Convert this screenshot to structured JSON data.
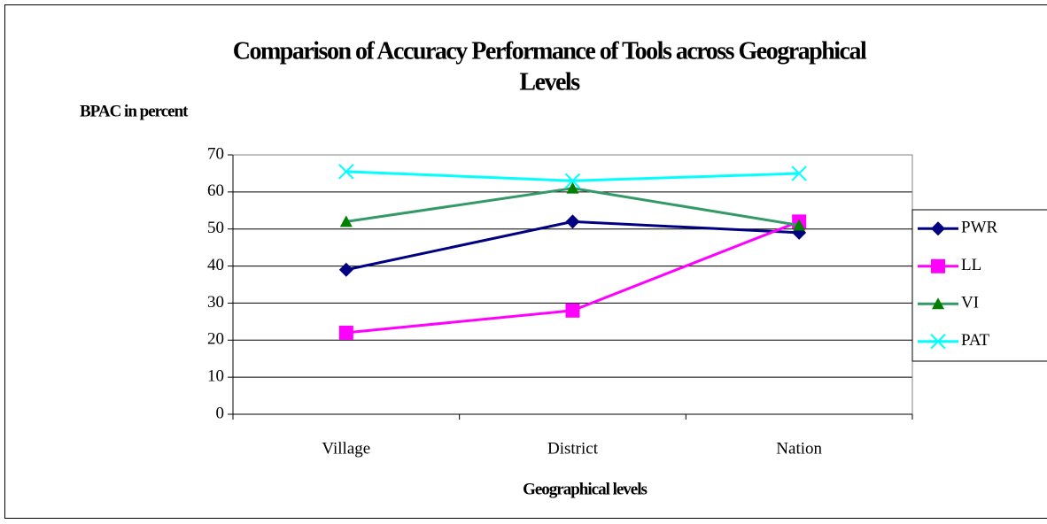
{
  "chart_data": {
    "type": "line",
    "title_lines": [
      "Comparison of Accuracy Performance of Tools across Geographical",
      "Levels"
    ],
    "y_label": "BPAC in percent",
    "x_label": "Geographical levels",
    "categories": [
      "Village",
      "District",
      "Nation"
    ],
    "series": [
      {
        "name": "PWR",
        "color": "#000080",
        "marker": "diamond",
        "values": [
          39,
          52,
          49
        ]
      },
      {
        "name": "LL",
        "color": "#ff00ff",
        "marker": "square",
        "values": [
          22,
          28,
          52
        ]
      },
      {
        "name": "VI",
        "color": "#339966",
        "marker": "triangle",
        "values": [
          52,
          61,
          51
        ]
      },
      {
        "name": "PAT",
        "color": "#00ffff",
        "marker": "x",
        "values": [
          65.5,
          63,
          65
        ]
      }
    ],
    "ylim": [
      0,
      70
    ],
    "yticks": [
      0,
      10,
      20,
      30,
      40,
      50,
      60,
      70
    ],
    "grid": true,
    "legend": "right"
  }
}
